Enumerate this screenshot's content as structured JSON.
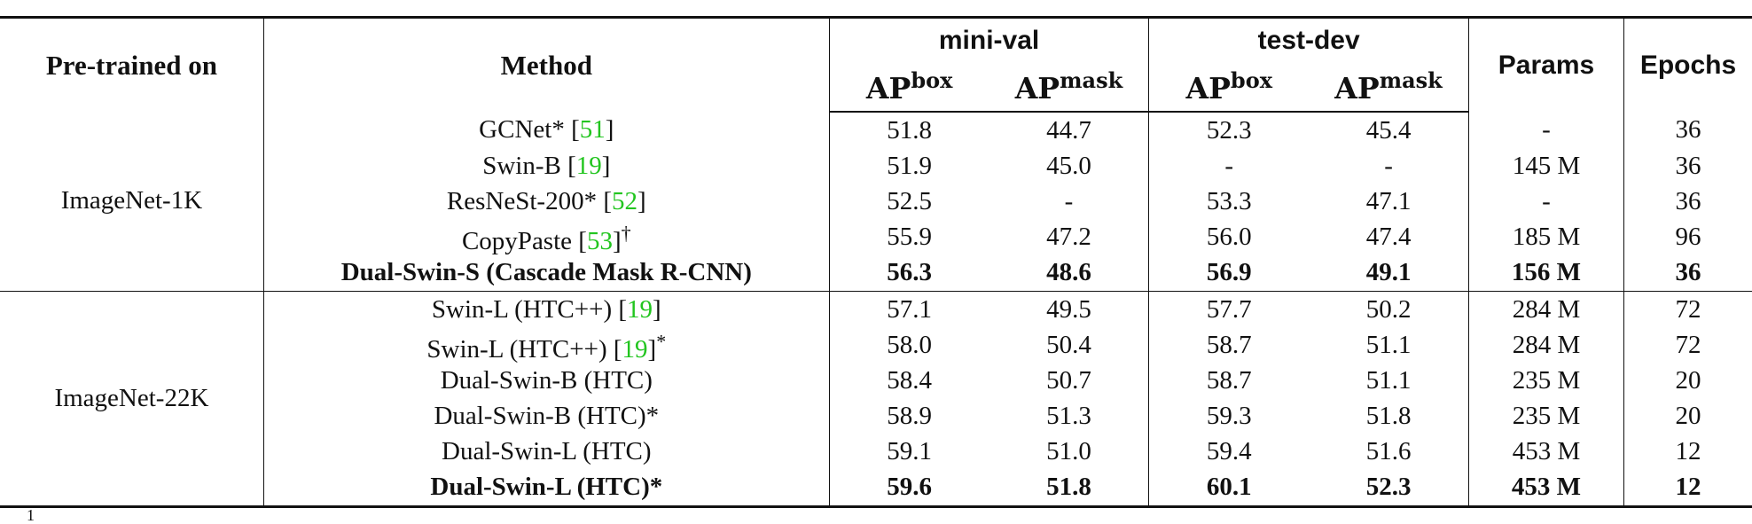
{
  "header": {
    "pretrained": "Pre-trained on",
    "method": "Method",
    "minival": "mini-val",
    "testdev": "test-dev",
    "params": "Params",
    "epochs": "Epochs",
    "ap_label": "AP",
    "box_sup": "box",
    "mask_sup": "mask"
  },
  "groups": [
    {
      "label": "ImageNet-1K"
    },
    {
      "label": "ImageNet-22K"
    }
  ],
  "rows": [
    {
      "name": "GCNet*",
      "cite": "51",
      "suffix": "",
      "mv_box": "51.8",
      "mv_mask": "44.7",
      "td_box": "52.3",
      "td_mask": "45.4",
      "params": "-",
      "epochs": "36"
    },
    {
      "name": "Swin-B",
      "cite": "19",
      "suffix": "",
      "mv_box": "51.9",
      "mv_mask": "45.0",
      "td_box": "-",
      "td_mask": "-",
      "params": "145 M",
      "epochs": "36"
    },
    {
      "name": "ResNeSt-200*",
      "cite": "52",
      "suffix": "",
      "mv_box": "52.5",
      "mv_mask": "-",
      "td_box": "53.3",
      "td_mask": "47.1",
      "params": "-",
      "epochs": "36"
    },
    {
      "name": "CopyPaste",
      "cite": "53",
      "suffix": "†",
      "mv_box": "55.9",
      "mv_mask": "47.2",
      "td_box": "56.0",
      "td_mask": "47.4",
      "params": "185 M",
      "epochs": "96"
    },
    {
      "name": "Dual-Swin-S (Cascade Mask R-CNN)",
      "cite": "",
      "suffix": "",
      "mv_box": "56.3",
      "mv_mask": "48.6",
      "td_box": "56.9",
      "td_mask": "49.1",
      "params": "156 M",
      "epochs": "36"
    },
    {
      "name": "Swin-L (HTC++)",
      "cite": "19",
      "suffix": "",
      "mv_box": "57.1",
      "mv_mask": "49.5",
      "td_box": "57.7",
      "td_mask": "50.2",
      "params": "284 M",
      "epochs": "72"
    },
    {
      "name": "Swin-L (HTC++)",
      "cite": "19",
      "suffix": "*",
      "mv_box": "58.0",
      "mv_mask": "50.4",
      "td_box": "58.7",
      "td_mask": "51.1",
      "params": "284 M",
      "epochs": "72"
    },
    {
      "name": "Dual-Swin-B (HTC)",
      "cite": "",
      "suffix": "",
      "mv_box": "58.4",
      "mv_mask": "50.7",
      "td_box": "58.7",
      "td_mask": "51.1",
      "params": "235 M",
      "epochs": "20"
    },
    {
      "name": "Dual-Swin-B (HTC)*",
      "cite": "",
      "suffix": "",
      "mv_box": "58.9",
      "mv_mask": "51.3",
      "td_box": "59.3",
      "td_mask": "51.8",
      "params": "235 M",
      "epochs": "20"
    },
    {
      "name": "Dual-Swin-L (HTC)",
      "cite": "",
      "suffix": "",
      "mv_box": "59.1",
      "mv_mask": "51.0",
      "td_box": "59.4",
      "td_mask": "51.6",
      "params": "453 M",
      "epochs": "12"
    },
    {
      "name": "Dual-Swin-L (HTC)*",
      "cite": "",
      "suffix": "",
      "mv_box": "59.6",
      "mv_mask": "51.8",
      "td_box": "60.1",
      "td_mask": "52.3",
      "params": "453 M",
      "epochs": "12"
    }
  ],
  "footnote_mark": "1",
  "colors": {
    "citation": "#22c51f",
    "rule": "#111111"
  }
}
